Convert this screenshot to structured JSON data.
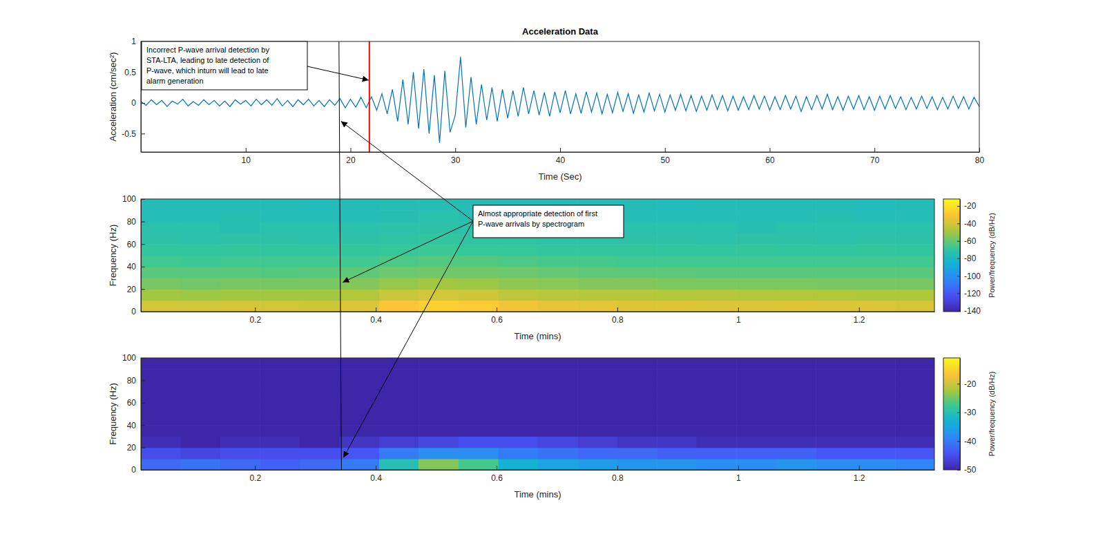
{
  "chart_data": [
    {
      "type": "line",
      "title": "Acceleration Data",
      "xlabel": "Time (Sec)",
      "ylabel": "Acceleration (cm/sec²)",
      "color": "#0072bd",
      "x": [
        0,
        0.5,
        1,
        1.5,
        2,
        2.5,
        3,
        3.5,
        4,
        4.5,
        5,
        5.5,
        6,
        6.5,
        7,
        7.5,
        8,
        8.5,
        9,
        9.5,
        10,
        10.5,
        11,
        11.5,
        12,
        12.5,
        13,
        13.5,
        14,
        14.5,
        15,
        15.5,
        16,
        16.5,
        17,
        17.5,
        18,
        18.5,
        19,
        19.5,
        20,
        20.5,
        21,
        21.5,
        22,
        22.5,
        23,
        23.5,
        24,
        24.5,
        25,
        25.5,
        26,
        26.5,
        27,
        27.5,
        28,
        28.5,
        29,
        29.5,
        30,
        30.5,
        31,
        31.5,
        32,
        32.5,
        33,
        33.5,
        34,
        34.5,
        35,
        35.5,
        36,
        36.5,
        37,
        37.5,
        38,
        38.5,
        39,
        39.5,
        40,
        40.5,
        41,
        41.5,
        42,
        42.5,
        43,
        43.5,
        44,
        44.5,
        45,
        45.5,
        46,
        46.5,
        47,
        47.5,
        48,
        48.5,
        49,
        49.5,
        50,
        50.5,
        51,
        51.5,
        52,
        52.5,
        53,
        53.5,
        54,
        54.5,
        55,
        55.5,
        56,
        56.5,
        57,
        57.5,
        58,
        58.5,
        59,
        59.5,
        60,
        60.5,
        61,
        61.5,
        62,
        62.5,
        63,
        63.5,
        64,
        64.5,
        65,
        65.5,
        66,
        66.5,
        67,
        67.5,
        68,
        68.5,
        69,
        69.5,
        70,
        70.5,
        71,
        71.5,
        72,
        72.5,
        73,
        73.5,
        74,
        74.5,
        75,
        75.5,
        76,
        76.5,
        77,
        77.5,
        78,
        78.5,
        79,
        79.5,
        80
      ],
      "values": [
        0.02,
        -0.04,
        0.05,
        -0.03,
        0.04,
        -0.06,
        0.03,
        -0.02,
        0.06,
        -0.05,
        0.02,
        -0.04,
        0.05,
        -0.03,
        0.04,
        -0.05,
        0.03,
        -0.06,
        0.05,
        -0.02,
        0.04,
        -0.05,
        0.06,
        -0.03,
        0.05,
        -0.04,
        0.07,
        -0.05,
        0.04,
        -0.06,
        0.05,
        -0.03,
        0.06,
        -0.05,
        0.04,
        -0.06,
        0.05,
        -0.04,
        0.07,
        -0.08,
        0.06,
        -0.07,
        0.09,
        -0.08,
        0.1,
        -0.12,
        0.15,
        -0.18,
        0.22,
        -0.3,
        0.38,
        -0.35,
        0.5,
        -0.42,
        0.55,
        -0.5,
        0.45,
        -0.65,
        0.52,
        -0.48,
        -0.2,
        0.75,
        -0.4,
        0.42,
        -0.35,
        0.3,
        -0.28,
        0.25,
        -0.3,
        0.22,
        -0.25,
        0.2,
        -0.22,
        0.25,
        -0.18,
        0.2,
        -0.2,
        0.17,
        -0.22,
        0.18,
        -0.16,
        0.2,
        -0.18,
        0.15,
        -0.17,
        0.18,
        -0.15,
        0.16,
        -0.18,
        0.14,
        -0.16,
        0.17,
        -0.14,
        0.15,
        -0.17,
        0.13,
        -0.15,
        0.16,
        -0.13,
        0.14,
        -0.15,
        0.13,
        -0.12,
        0.14,
        -0.13,
        0.12,
        -0.14,
        0.11,
        -0.12,
        0.13,
        -0.11,
        0.12,
        -0.13,
        0.11,
        -0.12,
        0.1,
        -0.11,
        0.12,
        -0.1,
        0.11,
        -0.12,
        0.1,
        -0.11,
        0.12,
        -0.1,
        0.11,
        -0.14,
        0.1,
        -0.11,
        0.12,
        -0.1,
        0.14,
        -0.11,
        0.1,
        -0.12,
        0.11,
        -0.1,
        0.12,
        -0.11,
        0.1,
        -0.12,
        0.11,
        -0.1,
        0.12,
        -0.09,
        0.1,
        -0.11,
        0.09,
        -0.1,
        0.11,
        -0.09,
        0.1,
        -0.11,
        0.09,
        -0.1,
        0.11,
        -0.09,
        0.1,
        -0.1,
        0.09,
        -0.06
      ],
      "xlim": [
        0,
        80
      ],
      "xticks": [
        10,
        20,
        30,
        40,
        50,
        60,
        70,
        80
      ],
      "ylim": [
        -0.8,
        1
      ],
      "yticks": [
        -0.5,
        0,
        0.5,
        1
      ],
      "vlines": [
        {
          "x": 21.8,
          "color": "#ff0000"
        },
        {
          "x": 18.9,
          "color": "#000000"
        }
      ],
      "annotations": [
        {
          "text": [
            "Incorrect P-wave arrival detection by",
            "STA-LTA, leading to late detection of",
            "P-wave, which inturn will lead to late",
            "alarm generation"
          ]
        }
      ]
    },
    {
      "type": "heatmap",
      "xlabel": "Time (mins)",
      "ylabel": "Frequency (Hz)",
      "colorbar_label": "Power/frequency (dB/Hz)",
      "x": [
        0.044,
        0.11,
        0.175,
        0.241,
        0.307,
        0.373,
        0.438,
        0.504,
        0.57,
        0.636,
        0.701,
        0.767,
        0.833,
        0.898,
        0.964,
        1.03,
        1.096,
        1.161,
        1.227,
        1.293
      ],
      "y": [
        5,
        15,
        25,
        35,
        45,
        55,
        65,
        75,
        85,
        95
      ],
      "z": [
        [
          -40,
          -40,
          -39,
          -40,
          -41,
          -38,
          -30,
          -26,
          -28,
          -33,
          -35,
          -36,
          -37,
          -37,
          -38,
          -38,
          -37,
          -38,
          -38,
          -39
        ],
        [
          -50,
          -51,
          -50,
          -50,
          -50,
          -47,
          -42,
          -40,
          -41,
          -44,
          -45,
          -46,
          -46,
          -47,
          -46,
          -47,
          -47,
          -47,
          -48,
          -48
        ],
        [
          -57,
          -58,
          -57,
          -57,
          -57,
          -55,
          -52,
          -50,
          -51,
          -53,
          -54,
          -55,
          -55,
          -56,
          -56,
          -56,
          -56,
          -57,
          -57,
          -57
        ],
        [
          -62,
          -62,
          -62,
          -63,
          -62,
          -61,
          -59,
          -58,
          -58,
          -59,
          -60,
          -61,
          -61,
          -61,
          -62,
          -62,
          -62,
          -62,
          -62,
          -62
        ],
        [
          -66,
          -67,
          -66,
          -66,
          -66,
          -66,
          -64,
          -63,
          -63,
          -64,
          -65,
          -65,
          -66,
          -66,
          -66,
          -66,
          -66,
          -66,
          -66,
          -66
        ],
        [
          -70,
          -70,
          -69,
          -70,
          -70,
          -69,
          -68,
          -67,
          -68,
          -68,
          -69,
          -69,
          -69,
          -70,
          -70,
          -69,
          -70,
          -70,
          -69,
          -70
        ],
        [
          -72,
          -73,
          -72,
          -72,
          -73,
          -72,
          -71,
          -70,
          -71,
          -71,
          -72,
          -72,
          -72,
          -72,
          -73,
          -72,
          -72,
          -73,
          -72,
          -72
        ],
        [
          -74,
          -74,
          -75,
          -74,
          -74,
          -74,
          -73,
          -72,
          -73,
          -73,
          -74,
          -74,
          -74,
          -74,
          -74,
          -75,
          -74,
          -74,
          -74,
          -74
        ],
        [
          -76,
          -76,
          -75,
          -76,
          -76,
          -76,
          -75,
          -74,
          -75,
          -75,
          -75,
          -76,
          -76,
          -76,
          -76,
          -76,
          -76,
          -75,
          -76,
          -76
        ],
        [
          -77,
          -77,
          -77,
          -77,
          -78,
          -77,
          -76,
          -76,
          -76,
          -77,
          -77,
          -77,
          -77,
          -78,
          -77,
          -77,
          -77,
          -77,
          -78,
          -77
        ]
      ],
      "xlim": [
        0.011,
        1.325
      ],
      "xticks": [
        0.2,
        0.4,
        0.6,
        0.8,
        1,
        1.2
      ],
      "ylim": [
        0,
        100
      ],
      "yticks": [
        0,
        20,
        40,
        60,
        80,
        100
      ],
      "clim": [
        -141,
        -12
      ],
      "cticks": [
        -140,
        -120,
        -100,
        -80,
        -60,
        -40,
        -20
      ],
      "onset": 0.343,
      "annotations": [
        {
          "text": [
            "Almost appropriate detection of first",
            "P-wave arrivals by spectrogram"
          ]
        }
      ]
    },
    {
      "type": "heatmap",
      "xlabel": "Time (mins)",
      "ylabel": "Frequency (Hz)",
      "colorbar_label": "Power/frequency (dB/Hz)",
      "x": [
        0.044,
        0.11,
        0.175,
        0.241,
        0.307,
        0.373,
        0.438,
        0.504,
        0.57,
        0.636,
        0.701,
        0.767,
        0.833,
        0.898,
        0.964,
        1.03,
        1.096,
        1.161,
        1.227,
        1.293
      ],
      "y": [
        5,
        15,
        25,
        35,
        45,
        55,
        65,
        75,
        85,
        95
      ],
      "z": [
        [
          -42,
          -41,
          -42,
          -43,
          -42,
          -40,
          -30,
          -24,
          -27,
          -33,
          -35,
          -36,
          -37,
          -37,
          -38,
          -38,
          -37,
          -38,
          -38,
          -39
        ],
        [
          -45,
          -46,
          -45,
          -45,
          -45,
          -44,
          -40,
          -38,
          -38,
          -40,
          -41,
          -42,
          -42,
          -43,
          -43,
          -43,
          -43,
          -44,
          -44,
          -44
        ],
        [
          -49,
          -50,
          -49,
          -49,
          -50,
          -48,
          -47,
          -46,
          -45,
          -45,
          -46,
          -47,
          -48,
          -48,
          -49,
          -49,
          -49,
          -49,
          -49,
          -49
        ],
        [
          -50,
          -50,
          -50,
          -50,
          -50,
          -50,
          -50,
          -50,
          -50,
          -50,
          -50,
          -50,
          -50,
          -50,
          -50,
          -50,
          -50,
          -50,
          -50,
          -50
        ],
        [
          -50,
          -50,
          -50,
          -50,
          -50,
          -50,
          -50,
          -50,
          -50,
          -50,
          -50,
          -50,
          -50,
          -50,
          -50,
          -50,
          -50,
          -50,
          -50,
          -50
        ],
        [
          -50,
          -50,
          -50,
          -50,
          -50,
          -50,
          -50,
          -50,
          -50,
          -50,
          -50,
          -50,
          -50,
          -50,
          -50,
          -50,
          -50,
          -50,
          -50,
          -50
        ],
        [
          -50,
          -50,
          -50,
          -50,
          -50,
          -50,
          -50,
          -50,
          -50,
          -50,
          -50,
          -50,
          -50,
          -50,
          -50,
          -50,
          -50,
          -50,
          -50,
          -50
        ],
        [
          -50,
          -50,
          -50,
          -50,
          -50,
          -50,
          -50,
          -50,
          -50,
          -50,
          -50,
          -50,
          -50,
          -50,
          -50,
          -50,
          -50,
          -50,
          -50,
          -50
        ],
        [
          -50,
          -50,
          -50,
          -50,
          -50,
          -50,
          -50,
          -50,
          -50,
          -50,
          -50,
          -50,
          -50,
          -50,
          -50,
          -50,
          -50,
          -50,
          -50,
          -50
        ],
        [
          -50,
          -50,
          -50,
          -50,
          -50,
          -50,
          -50,
          -50,
          -50,
          -50,
          -50,
          -50,
          -50,
          -50,
          -50,
          -50,
          -50,
          -50,
          -50,
          -50
        ]
      ],
      "xlim": [
        0.011,
        1.325
      ],
      "xticks": [
        0.2,
        0.4,
        0.6,
        0.8,
        1,
        1.2
      ],
      "ylim": [
        0,
        100
      ],
      "yticks": [
        0,
        20,
        40,
        60,
        80,
        100
      ],
      "clim": [
        -50,
        -11
      ],
      "cticks": [
        -50,
        -40,
        -30,
        -20
      ],
      "onset": 0.343
    }
  ]
}
